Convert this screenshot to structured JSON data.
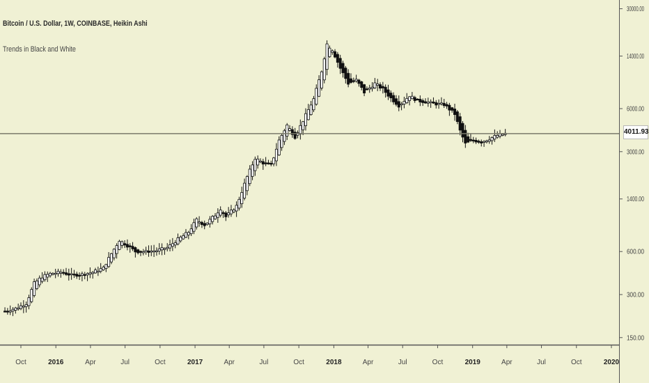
{
  "legend": {
    "title": "Bitcoin / U.S. Dollar, 1W, COINBASE, Heikin Ashi",
    "indicator": "Trends in Black and White"
  },
  "price_tag": "4011.93",
  "colors": {
    "background": "#f0f1d4",
    "candle": "#111111",
    "axis": "#444444",
    "price_line": "#7a7a6a"
  },
  "chart_data": {
    "type": "line",
    "title": "Bitcoin / U.S. Dollar, 1W, COINBASE, Heikin Ashi",
    "style": "heikin-ashi candles",
    "yscale": "log",
    "ylim": [
      130,
      36000
    ],
    "y_ticks": [
      "30000.00",
      "14000.00",
      "6000.00",
      "3000.00",
      "1400.00",
      "600.00",
      "300.00",
      "150.00"
    ],
    "x_ticks": [
      {
        "label": "Oct",
        "date": "2015-10-01"
      },
      {
        "label": "2016",
        "date": "2016-01-01",
        "bold": true
      },
      {
        "label": "Apr",
        "date": "2016-04-01"
      },
      {
        "label": "Jul",
        "date": "2016-07-01"
      },
      {
        "label": "Oct",
        "date": "2016-10-01"
      },
      {
        "label": "2017",
        "date": "2017-01-01",
        "bold": true
      },
      {
        "label": "Apr",
        "date": "2017-04-01"
      },
      {
        "label": "Jul",
        "date": "2017-07-01"
      },
      {
        "label": "Oct",
        "date": "2017-10-01"
      },
      {
        "label": "2018",
        "date": "2018-01-01",
        "bold": true
      },
      {
        "label": "Apr",
        "date": "2018-04-01"
      },
      {
        "label": "Jul",
        "date": "2018-07-01"
      },
      {
        "label": "Oct",
        "date": "2018-10-01"
      },
      {
        "label": "2019",
        "date": "2019-01-01",
        "bold": true
      },
      {
        "label": "Apr",
        "date": "2019-04-01"
      },
      {
        "label": "Jul",
        "date": "2019-07-01"
      },
      {
        "label": "Oct",
        "date": "2019-10-01"
      },
      {
        "label": "2020",
        "date": "2020-01-01",
        "bold": true
      }
    ],
    "last_price": 4011.93,
    "series": [
      {
        "x": [
          "2015-08-20",
          "2015-09-17",
          "2015-10-15",
          "2015-11-05",
          "2015-11-26",
          "2015-12-17",
          "2016-01-14",
          "2016-02-11",
          "2016-03-10",
          "2016-04-07",
          "2016-05-05",
          "2016-05-26",
          "2016-06-16",
          "2016-07-07",
          "2016-07-28",
          "2016-08-25",
          "2016-09-22",
          "2016-10-20",
          "2016-11-17",
          "2016-12-15",
          "2017-01-05",
          "2017-01-26",
          "2017-02-23",
          "2017-03-09",
          "2017-03-23",
          "2017-04-20",
          "2017-05-18",
          "2017-06-08",
          "2017-06-29",
          "2017-07-20",
          "2017-08-10",
          "2017-08-31",
          "2017-09-21",
          "2017-10-19",
          "2017-11-09",
          "2017-11-30",
          "2017-12-14",
          "2017-12-28",
          "2018-01-18",
          "2018-02-08",
          "2018-03-01",
          "2018-03-22",
          "2018-04-19",
          "2018-05-10",
          "2018-05-31",
          "2018-06-21",
          "2018-07-19",
          "2018-08-09",
          "2018-08-30",
          "2018-09-20",
          "2018-10-18",
          "2018-11-15",
          "2018-11-29",
          "2018-12-13",
          "2019-01-03",
          "2019-01-24",
          "2019-02-14",
          "2019-03-07",
          "2019-03-28"
        ],
        "values": [
          230,
          240,
          260,
          360,
          400,
          420,
          430,
          410,
          415,
          430,
          460,
          580,
          720,
          660,
          600,
          600,
          610,
          640,
          730,
          820,
          1000,
          920,
          1080,
          1200,
          1050,
          1250,
          2000,
          2700,
          2500,
          2400,
          3600,
          4600,
          3800,
          5400,
          7000,
          11000,
          17000,
          15500,
          11500,
          9000,
          9500,
          7800,
          9000,
          8200,
          7100,
          6300,
          7400,
          6800,
          6700,
          6500,
          6400,
          5500,
          4200,
          3400,
          3600,
          3500,
          3700,
          3900,
          4010
        ]
      }
    ]
  }
}
